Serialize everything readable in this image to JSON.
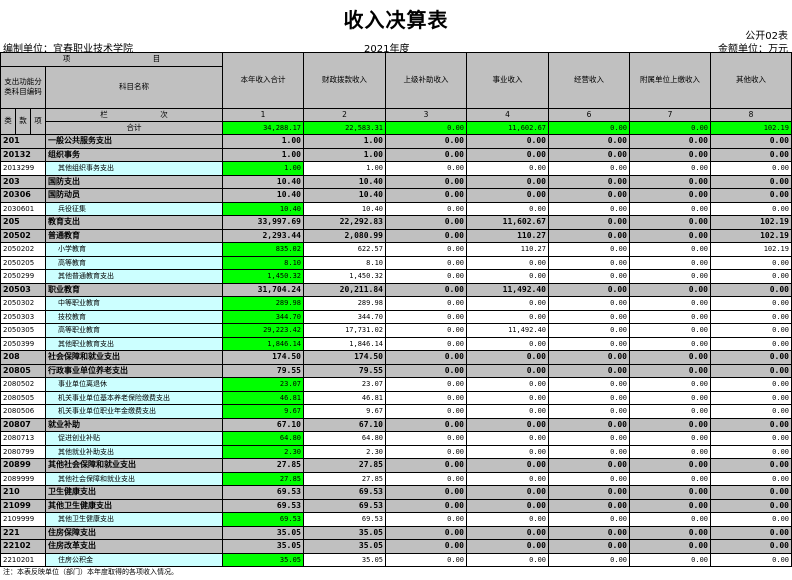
{
  "title": "收入决算表",
  "form_no": "公开02表",
  "unit": "编制单位：宜春职业技术学院",
  "year": "2021年度",
  "money_unit": "金额单位：万元",
  "header": {
    "item": "项　　　　　　　　　　　目",
    "code": "支出功能分类科目编码",
    "name": "科目名称",
    "lei": "类",
    "kuan": "款",
    "xiang": "项",
    "lanci": "栏　　　　　　　次",
    "total_label": "合计",
    "columns": [
      "本年收入合计",
      "财政拨款收入",
      "上级补助收入",
      "事业收入",
      "经营收入",
      "附属单位上缴收入",
      "其他收入"
    ],
    "col_nums": [
      "1",
      "2",
      "3",
      "4",
      "6",
      "7",
      "8"
    ]
  },
  "colors": {
    "gray": "#c0c0c0",
    "green": "#00ff00",
    "cyan": "#ccffff"
  },
  "total": [
    "34,288.17",
    "22,583.31",
    "0.00",
    "11,602.67",
    "0.00",
    "0.00",
    "102.19"
  ],
  "rows": [
    {
      "t": "cat",
      "code": "201",
      "name": "一般公共服务支出",
      "v": [
        "1.00",
        "1.00",
        "0.00",
        "0.00",
        "0.00",
        "0.00",
        "0.00"
      ]
    },
    {
      "t": "cat",
      "code": "20132",
      "name": "组织事务",
      "v": [
        "1.00",
        "1.00",
        "0.00",
        "0.00",
        "0.00",
        "0.00",
        "0.00"
      ]
    },
    {
      "t": "item",
      "code": "2013299",
      "name": "其他组织事务支出",
      "v": [
        "1.00",
        "1.00",
        "0.00",
        "0.00",
        "0.00",
        "0.00",
        "0.00"
      ]
    },
    {
      "t": "cat",
      "code": "203",
      "name": "国防支出",
      "v": [
        "10.40",
        "10.40",
        "0.00",
        "0.00",
        "0.00",
        "0.00",
        "0.00"
      ]
    },
    {
      "t": "cat",
      "code": "20306",
      "name": "国防动员",
      "v": [
        "10.40",
        "10.40",
        "0.00",
        "0.00",
        "0.00",
        "0.00",
        "0.00"
      ]
    },
    {
      "t": "item",
      "code": "2030601",
      "name": "兵役征集",
      "v": [
        "10.40",
        "10.40",
        "0.00",
        "0.00",
        "0.00",
        "0.00",
        "0.00"
      ]
    },
    {
      "t": "cat",
      "code": "205",
      "name": "教育支出",
      "v": [
        "33,997.69",
        "22,292.83",
        "0.00",
        "11,602.67",
        "0.00",
        "0.00",
        "102.19"
      ]
    },
    {
      "t": "cat",
      "code": "20502",
      "name": "普通教育",
      "v": [
        "2,293.44",
        "2,080.99",
        "0.00",
        "110.27",
        "0.00",
        "0.00",
        "102.19"
      ]
    },
    {
      "t": "item",
      "code": "2050202",
      "name": "小学教育",
      "v": [
        "835.02",
        "622.57",
        "0.00",
        "110.27",
        "0.00",
        "0.00",
        "102.19"
      ]
    },
    {
      "t": "item",
      "code": "2050205",
      "name": "高等教育",
      "v": [
        "8.10",
        "8.10",
        "0.00",
        "0.00",
        "0.00",
        "0.00",
        "0.00"
      ]
    },
    {
      "t": "item",
      "code": "2050299",
      "name": "其他普通教育支出",
      "v": [
        "1,450.32",
        "1,450.32",
        "0.00",
        "0.00",
        "0.00",
        "0.00",
        "0.00"
      ]
    },
    {
      "t": "cat",
      "code": "20503",
      "name": "职业教育",
      "v": [
        "31,704.24",
        "20,211.84",
        "0.00",
        "11,492.40",
        "0.00",
        "0.00",
        "0.00"
      ]
    },
    {
      "t": "item",
      "code": "2050302",
      "name": "中等职业教育",
      "v": [
        "289.98",
        "289.98",
        "0.00",
        "0.00",
        "0.00",
        "0.00",
        "0.00"
      ]
    },
    {
      "t": "item",
      "code": "2050303",
      "name": "技校教育",
      "v": [
        "344.70",
        "344.70",
        "0.00",
        "0.00",
        "0.00",
        "0.00",
        "0.00"
      ]
    },
    {
      "t": "item",
      "code": "2050305",
      "name": "高等职业教育",
      "v": [
        "29,223.42",
        "17,731.02",
        "0.00",
        "11,492.40",
        "0.00",
        "0.00",
        "0.00"
      ]
    },
    {
      "t": "item",
      "code": "2050399",
      "name": "其他职业教育支出",
      "v": [
        "1,846.14",
        "1,846.14",
        "0.00",
        "0.00",
        "0.00",
        "0.00",
        "0.00"
      ]
    },
    {
      "t": "cat",
      "code": "208",
      "name": "社会保障和就业支出",
      "v": [
        "174.50",
        "174.50",
        "0.00",
        "0.00",
        "0.00",
        "0.00",
        "0.00"
      ]
    },
    {
      "t": "cat",
      "code": "20805",
      "name": "行政事业单位养老支出",
      "v": [
        "79.55",
        "79.55",
        "0.00",
        "0.00",
        "0.00",
        "0.00",
        "0.00"
      ]
    },
    {
      "t": "item",
      "code": "2080502",
      "name": "事业单位离退休",
      "v": [
        "23.07",
        "23.07",
        "0.00",
        "0.00",
        "0.00",
        "0.00",
        "0.00"
      ]
    },
    {
      "t": "item",
      "code": "2080505",
      "name": "机关事业单位基本养老保险缴费支出",
      "v": [
        "46.81",
        "46.81",
        "0.00",
        "0.00",
        "0.00",
        "0.00",
        "0.00"
      ]
    },
    {
      "t": "item",
      "code": "2080506",
      "name": "机关事业单位职业年金缴费支出",
      "v": [
        "9.67",
        "9.67",
        "0.00",
        "0.00",
        "0.00",
        "0.00",
        "0.00"
      ]
    },
    {
      "t": "cat",
      "code": "20807",
      "name": "就业补助",
      "v": [
        "67.10",
        "67.10",
        "0.00",
        "0.00",
        "0.00",
        "0.00",
        "0.00"
      ]
    },
    {
      "t": "item",
      "code": "2080713",
      "name": "促进创业补贴",
      "v": [
        "64.80",
        "64.80",
        "0.00",
        "0.00",
        "0.00",
        "0.00",
        "0.00"
      ]
    },
    {
      "t": "item",
      "code": "2080799",
      "name": "其他就业补助支出",
      "v": [
        "2.30",
        "2.30",
        "0.00",
        "0.00",
        "0.00",
        "0.00",
        "0.00"
      ]
    },
    {
      "t": "cat",
      "code": "20899",
      "name": "其他社会保障和就业支出",
      "v": [
        "27.85",
        "27.85",
        "0.00",
        "0.00",
        "0.00",
        "0.00",
        "0.00"
      ]
    },
    {
      "t": "item",
      "code": "2089999",
      "name": "其他社会保障和就业支出",
      "v": [
        "27.85",
        "27.85",
        "0.00",
        "0.00",
        "0.00",
        "0.00",
        "0.00"
      ]
    },
    {
      "t": "cat",
      "code": "210",
      "name": "卫生健康支出",
      "v": [
        "69.53",
        "69.53",
        "0.00",
        "0.00",
        "0.00",
        "0.00",
        "0.00"
      ]
    },
    {
      "t": "cat",
      "code": "21099",
      "name": "其他卫生健康支出",
      "v": [
        "69.53",
        "69.53",
        "0.00",
        "0.00",
        "0.00",
        "0.00",
        "0.00"
      ]
    },
    {
      "t": "item",
      "code": "2109999",
      "name": "其他卫生健康支出",
      "v": [
        "69.53",
        "69.53",
        "0.00",
        "0.00",
        "0.00",
        "0.00",
        "0.00"
      ]
    },
    {
      "t": "cat",
      "code": "221",
      "name": "住房保障支出",
      "v": [
        "35.05",
        "35.05",
        "0.00",
        "0.00",
        "0.00",
        "0.00",
        "0.00"
      ]
    },
    {
      "t": "cat",
      "code": "22102",
      "name": "住房改革支出",
      "v": [
        "35.05",
        "35.05",
        "0.00",
        "0.00",
        "0.00",
        "0.00",
        "0.00"
      ]
    },
    {
      "t": "item",
      "code": "2210201",
      "name": "住房公积金",
      "v": [
        "35.05",
        "35.05",
        "0.00",
        "0.00",
        "0.00",
        "0.00",
        "0.00"
      ]
    }
  ],
  "note": "注：本表反映单位（部门）本年度取得的各项收入情况。"
}
